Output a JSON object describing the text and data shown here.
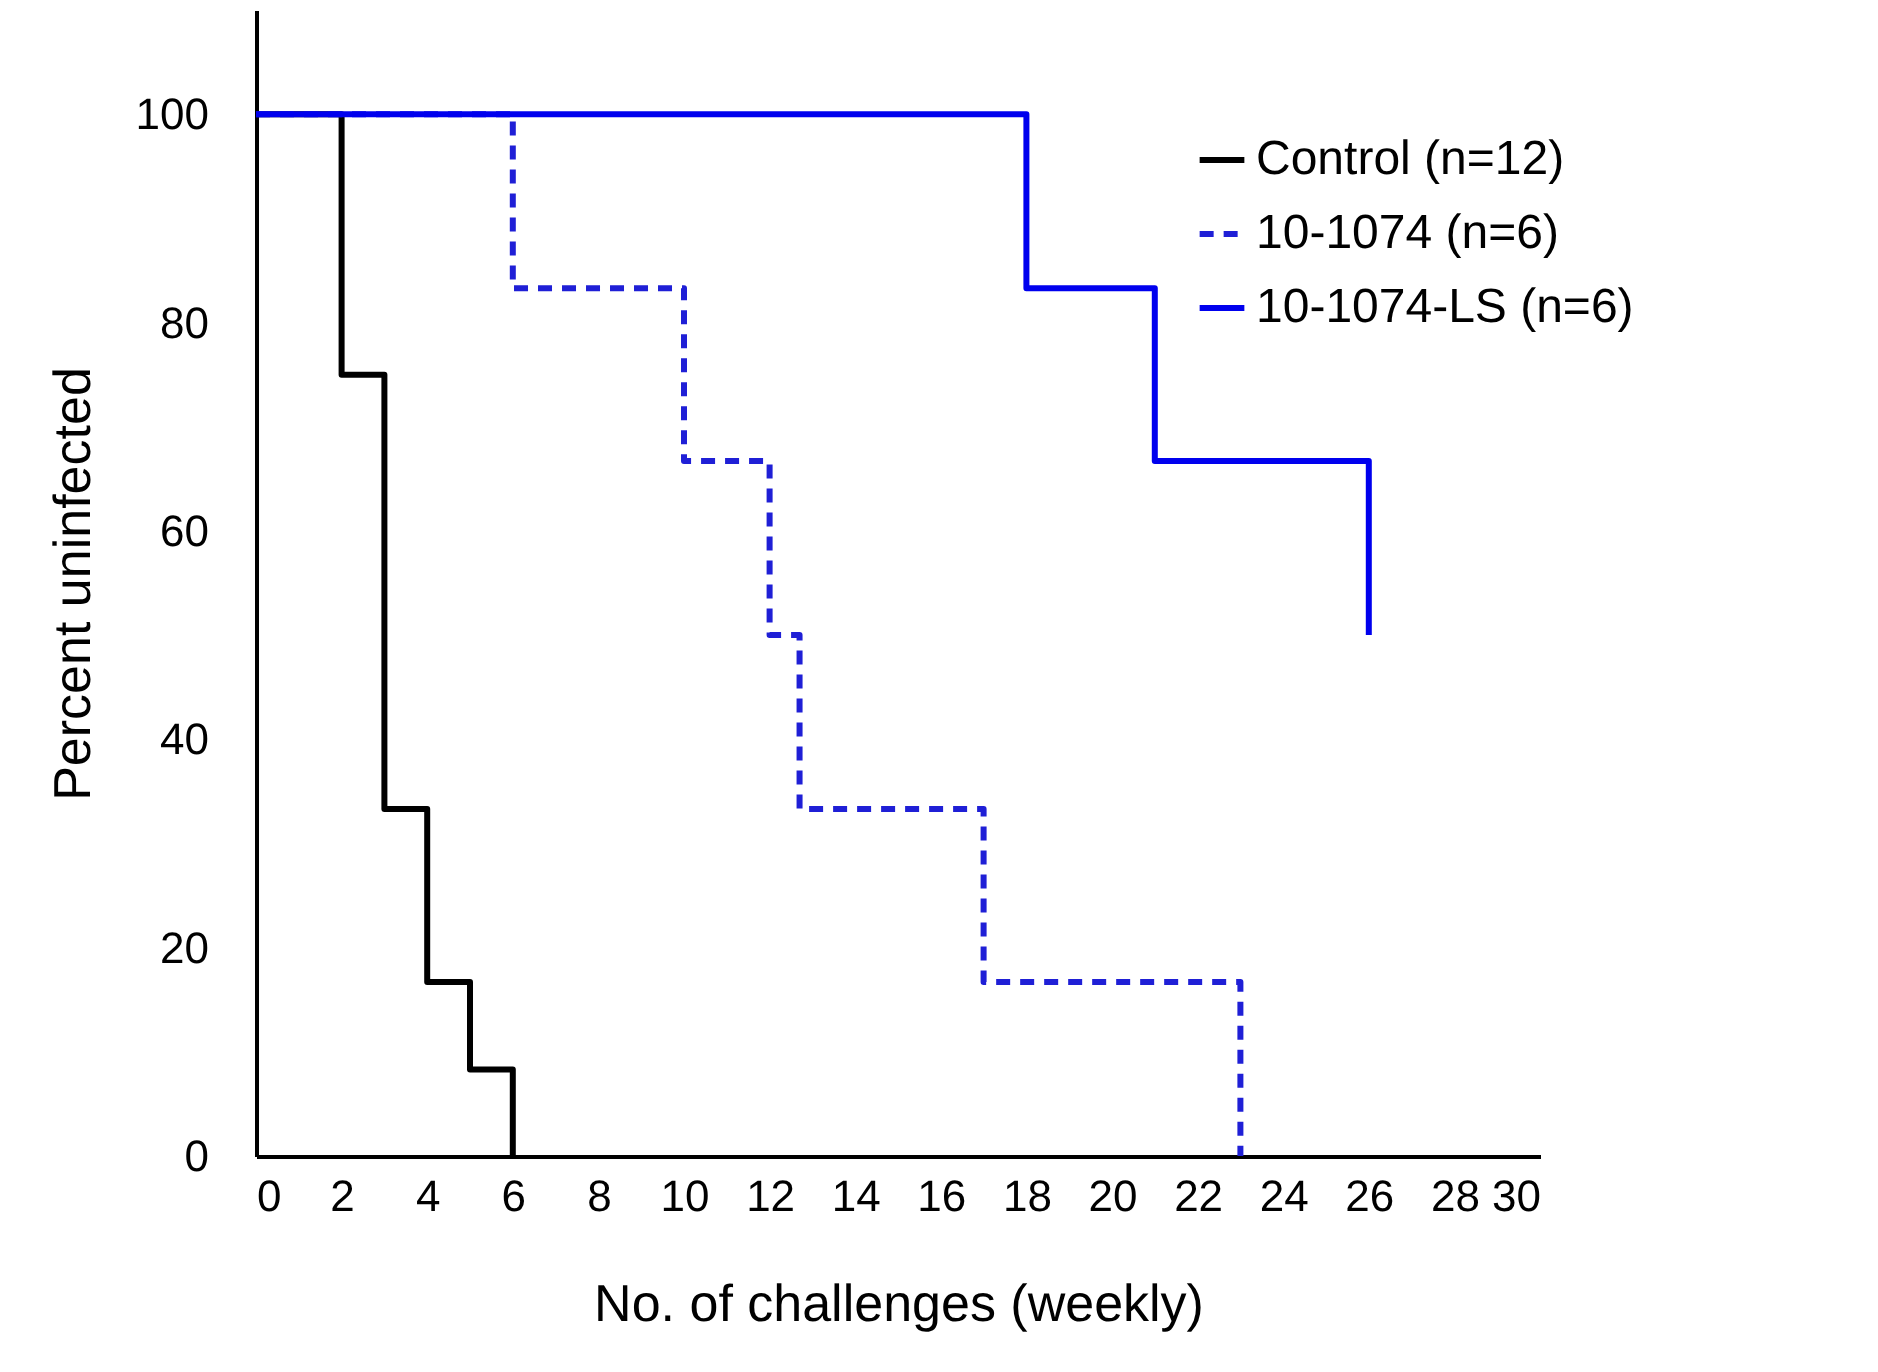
{
  "chart_data": {
    "type": "step",
    "xlabel": "No. of challenges (weekly)",
    "ylabel": "Percent uninfected",
    "xlim": [
      0,
      30
    ],
    "xticks": [
      0,
      2,
      4,
      6,
      8,
      10,
      12,
      14,
      16,
      18,
      20,
      22,
      24,
      26,
      28,
      30
    ],
    "ylim": [
      0,
      110
    ],
    "yticks": [
      0,
      20,
      40,
      60,
      80,
      100
    ],
    "grid": false,
    "legend": "top right",
    "marker": "none",
    "series": [
      {
        "name": "Control (n=12)",
        "color": "#000000",
        "line_style": "solid",
        "x": [
          0,
          2,
          3,
          4,
          5,
          6
        ],
        "values": [
          100,
          75,
          33.3,
          16.7,
          8.3,
          0
        ]
      },
      {
        "name": "10-1074 (n=6)",
        "color": "#1f1fd6",
        "line_style": "dashed",
        "x": [
          0,
          6,
          10,
          12,
          12.7,
          17,
          23
        ],
        "values": [
          100,
          83.3,
          66.7,
          50,
          33.3,
          16.7,
          0
        ]
      },
      {
        "name": "10-1074-LS (n=6)",
        "color": "#0000ee",
        "line_style": "solid",
        "x": [
          0,
          18,
          21,
          26
        ],
        "values": [
          100,
          83.3,
          66.7,
          50
        ]
      }
    ]
  }
}
